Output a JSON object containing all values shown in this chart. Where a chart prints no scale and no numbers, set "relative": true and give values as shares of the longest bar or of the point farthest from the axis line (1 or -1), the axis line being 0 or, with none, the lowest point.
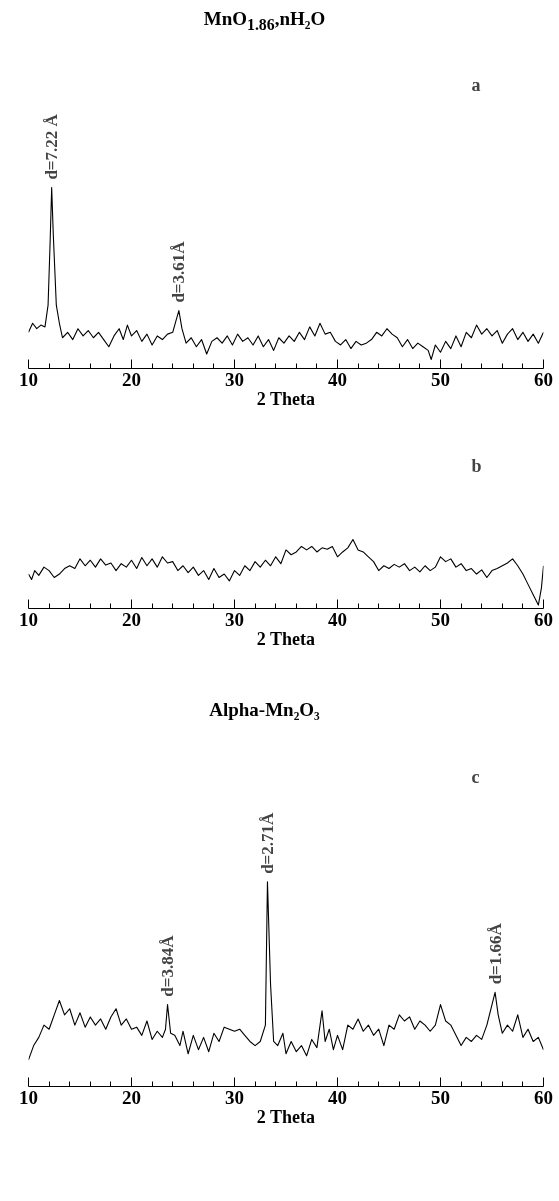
{
  "chart_data": [
    {
      "type": "line",
      "title": "MnO$_{1.86}$,nH₂O",
      "xlabel": "2 Theta",
      "relative": true,
      "color": "#000000",
      "xlim": [
        10,
        60
      ],
      "xticks": [
        10,
        {
          "value": 12,
          "label": null
        },
        {
          "value": 14,
          "label": null
        },
        {
          "value": 16,
          "label": null
        },
        {
          "value": 18,
          "label": null
        },
        20,
        {
          "value": 22,
          "label": null
        },
        {
          "value": 24,
          "label": null
        },
        {
          "value": 26,
          "label": null
        },
        {
          "value": 28,
          "label": null
        },
        30,
        {
          "value": 32,
          "label": null
        },
        {
          "value": 34,
          "label": null
        },
        {
          "value": 36,
          "label": null
        },
        {
          "value": 38,
          "label": null
        },
        40,
        {
          "value": 42,
          "label": null
        },
        {
          "value": 44,
          "label": null
        },
        {
          "value": 46,
          "label": null
        },
        {
          "value": 48,
          "label": null
        },
        50,
        {
          "value": 52,
          "label": null
        },
        {
          "value": 54,
          "label": null
        },
        {
          "value": 56,
          "label": null
        },
        {
          "value": 58,
          "label": null
        },
        60
      ],
      "x": [
        10,
        10.4,
        10.8,
        11.2,
        11.6,
        11.9,
        12.1,
        12.25,
        12.4,
        12.7,
        13,
        13.3,
        13.8,
        14.3,
        14.8,
        15.3,
        15.8,
        16.3,
        16.8,
        17.3,
        17.8,
        18.3,
        18.8,
        19.2,
        19.6,
        20,
        20.5,
        21,
        21.5,
        22,
        22.5,
        23,
        23.5,
        24,
        24.3,
        24.6,
        24.9,
        25.3,
        25.8,
        26.3,
        26.8,
        27.3,
        27.8,
        28.3,
        28.8,
        29.3,
        29.8,
        30.3,
        30.8,
        31.3,
        31.8,
        32.3,
        32.8,
        33.3,
        33.8,
        34.3,
        34.8,
        35.3,
        35.8,
        36.3,
        36.8,
        37.3,
        37.8,
        38.3,
        38.8,
        39.3,
        39.8,
        40.3,
        40.8,
        41.3,
        41.8,
        42.3,
        42.8,
        43.3,
        43.8,
        44.3,
        44.8,
        45.3,
        45.8,
        46.3,
        46.8,
        47.3,
        47.8,
        48.3,
        48.8,
        49.1,
        49.5,
        50,
        50.5,
        51,
        51.5,
        52,
        52.5,
        53,
        53.5,
        54,
        54.5,
        55,
        55.5,
        56,
        56.5,
        57,
        57.5,
        58,
        58.5,
        59,
        59.5,
        60
      ],
      "values": [
        0.2,
        0.25,
        0.22,
        0.24,
        0.23,
        0.35,
        0.7,
        1.0,
        0.75,
        0.35,
        0.25,
        0.17,
        0.2,
        0.16,
        0.22,
        0.18,
        0.21,
        0.17,
        0.2,
        0.16,
        0.12,
        0.18,
        0.22,
        0.16,
        0.24,
        0.18,
        0.21,
        0.15,
        0.19,
        0.13,
        0.18,
        0.16,
        0.19,
        0.2,
        0.26,
        0.32,
        0.22,
        0.14,
        0.17,
        0.12,
        0.16,
        0.08,
        0.15,
        0.17,
        0.14,
        0.18,
        0.13,
        0.19,
        0.15,
        0.17,
        0.13,
        0.18,
        0.12,
        0.16,
        0.1,
        0.17,
        0.14,
        0.18,
        0.15,
        0.2,
        0.16,
        0.23,
        0.18,
        0.25,
        0.19,
        0.2,
        0.15,
        0.13,
        0.16,
        0.11,
        0.15,
        0.13,
        0.14,
        0.16,
        0.2,
        0.18,
        0.22,
        0.19,
        0.17,
        0.12,
        0.16,
        0.11,
        0.14,
        0.12,
        0.1,
        0.05,
        0.13,
        0.09,
        0.15,
        0.11,
        0.18,
        0.12,
        0.2,
        0.17,
        0.24,
        0.19,
        0.22,
        0.18,
        0.21,
        0.14,
        0.19,
        0.22,
        0.16,
        0.2,
        0.15,
        0.19,
        0.14,
        0.2
      ],
      "annotations": [
        {
          "text": "d=7.22 Å",
          "x": 12.25,
          "y": 1.0
        },
        {
          "text": "d=3.61Å",
          "x": 24.6,
          "y": 0.32
        },
        "a"
      ]
    },
    {
      "type": "line",
      "xlabel": "2 Theta",
      "relative": true,
      "color": "#000000",
      "xlim": [
        10,
        60
      ],
      "xticks": [
        10,
        {
          "value": 12,
          "label": null
        },
        {
          "value": 14,
          "label": null
        },
        {
          "value": 16,
          "label": null
        },
        {
          "value": 18,
          "label": null
        },
        20,
        {
          "value": 22,
          "label": null
        },
        {
          "value": 24,
          "label": null
        },
        {
          "value": 26,
          "label": null
        },
        {
          "value": 28,
          "label": null
        },
        30,
        {
          "value": 32,
          "label": null
        },
        {
          "value": 34,
          "label": null
        },
        {
          "value": 36,
          "label": null
        },
        {
          "value": 38,
          "label": null
        },
        40,
        {
          "value": 42,
          "label": null
        },
        {
          "value": 44,
          "label": null
        },
        {
          "value": 46,
          "label": null
        },
        {
          "value": 48,
          "label": null
        },
        50,
        {
          "value": 52,
          "label": null
        },
        {
          "value": 54,
          "label": null
        },
        {
          "value": 56,
          "label": null
        },
        {
          "value": 58,
          "label": null
        },
        60
      ],
      "x": [
        10,
        10.3,
        10.6,
        11,
        11.5,
        12,
        12.5,
        13,
        13.5,
        14,
        14.5,
        15,
        15.5,
        16,
        16.5,
        17,
        17.5,
        18,
        18.5,
        19,
        19.5,
        20,
        20.5,
        21,
        21.5,
        22,
        22.5,
        23,
        23.5,
        24,
        24.5,
        25,
        25.5,
        26,
        26.5,
        27,
        27.5,
        28,
        28.5,
        29,
        29.5,
        30,
        30.5,
        31,
        31.5,
        32,
        32.5,
        33,
        33.5,
        34,
        34.5,
        35,
        35.5,
        36,
        36.5,
        37,
        37.5,
        38,
        38.5,
        39,
        39.5,
        40,
        40.5,
        41,
        41.5,
        42,
        42.5,
        43,
        43.5,
        44,
        44.5,
        45,
        45.5,
        46,
        46.5,
        47,
        47.5,
        48,
        48.5,
        49,
        49.5,
        50,
        50.5,
        51,
        51.5,
        52,
        52.5,
        53,
        53.5,
        54,
        54.5,
        55,
        55.5,
        56,
        56.5,
        57,
        57.5,
        58,
        58.5,
        59,
        59.5,
        59.8,
        60
      ],
      "values": [
        0.5,
        0.42,
        0.55,
        0.48,
        0.6,
        0.55,
        0.45,
        0.5,
        0.58,
        0.62,
        0.58,
        0.72,
        0.62,
        0.7,
        0.6,
        0.72,
        0.63,
        0.66,
        0.55,
        0.65,
        0.6,
        0.7,
        0.58,
        0.74,
        0.62,
        0.72,
        0.6,
        0.75,
        0.66,
        0.68,
        0.55,
        0.62,
        0.52,
        0.6,
        0.48,
        0.55,
        0.42,
        0.58,
        0.45,
        0.5,
        0.4,
        0.55,
        0.48,
        0.62,
        0.55,
        0.68,
        0.6,
        0.7,
        0.62,
        0.75,
        0.65,
        0.85,
        0.78,
        0.82,
        0.9,
        0.85,
        0.9,
        0.82,
        0.88,
        0.86,
        0.9,
        0.75,
        0.82,
        0.88,
        1.0,
        0.85,
        0.82,
        0.75,
        0.68,
        0.55,
        0.62,
        0.58,
        0.64,
        0.6,
        0.65,
        0.55,
        0.6,
        0.53,
        0.62,
        0.55,
        0.6,
        0.75,
        0.68,
        0.72,
        0.6,
        0.65,
        0.55,
        0.58,
        0.5,
        0.56,
        0.45,
        0.55,
        0.58,
        0.62,
        0.66,
        0.72,
        0.62,
        0.5,
        0.35,
        0.2,
        0.05,
        0.3,
        0.62
      ],
      "annotations": [
        "b"
      ]
    },
    {
      "type": "line",
      "title": "Alpha-Mn₂O₃",
      "xlabel": "2 Theta",
      "relative": true,
      "color": "#000000",
      "xlim": [
        10,
        60
      ],
      "xticks": [
        10,
        {
          "value": 12,
          "label": null
        },
        {
          "value": 14,
          "label": null
        },
        {
          "value": 16,
          "label": null
        },
        {
          "value": 18,
          "label": null
        },
        20,
        {
          "value": 22,
          "label": null
        },
        {
          "value": 24,
          "label": null
        },
        {
          "value": 26,
          "label": null
        },
        {
          "value": 28,
          "label": null
        },
        30,
        {
          "value": 32,
          "label": null
        },
        {
          "value": 34,
          "label": null
        },
        {
          "value": 36,
          "label": null
        },
        {
          "value": 38,
          "label": null
        },
        40,
        {
          "value": 42,
          "label": null
        },
        {
          "value": 44,
          "label": null
        },
        {
          "value": 46,
          "label": null
        },
        {
          "value": 48,
          "label": null
        },
        50,
        {
          "value": 52,
          "label": null
        },
        {
          "value": 54,
          "label": null
        },
        {
          "value": 56,
          "label": null
        },
        {
          "value": 58,
          "label": null
        },
        60
      ],
      "x": [
        10,
        10.5,
        11,
        11.5,
        12,
        12.5,
        13,
        13.5,
        14,
        14.5,
        15,
        15.5,
        16,
        16.5,
        17,
        17.5,
        18,
        18.5,
        19,
        19.5,
        20,
        20.5,
        21,
        21.5,
        22,
        22.5,
        23,
        23.3,
        23.5,
        23.8,
        24.2,
        24.7,
        25,
        25.5,
        26,
        26.5,
        27,
        27.5,
        28,
        28.5,
        29,
        29.5,
        30,
        30.5,
        31,
        31.5,
        32,
        32.5,
        33,
        33.2,
        33.5,
        33.8,
        34.2,
        34.7,
        35,
        35.5,
        36,
        36.5,
        37,
        37.5,
        38,
        38.5,
        38.8,
        39.2,
        39.6,
        40,
        40.5,
        41,
        41.5,
        42,
        42.5,
        43,
        43.5,
        44,
        44.5,
        45,
        45.5,
        46,
        46.5,
        47,
        47.5,
        48,
        48.5,
        49,
        49.5,
        50,
        50.5,
        51,
        51.5,
        52,
        52.5,
        53,
        53.5,
        54,
        54.5,
        55,
        55.3,
        55.6,
        56,
        56.5,
        57,
        57.5,
        58,
        58.5,
        59,
        59.5,
        60
      ],
      "values": [
        0.13,
        0.2,
        0.24,
        0.3,
        0.28,
        0.35,
        0.42,
        0.35,
        0.38,
        0.3,
        0.36,
        0.29,
        0.34,
        0.3,
        0.33,
        0.28,
        0.34,
        0.38,
        0.3,
        0.33,
        0.28,
        0.29,
        0.25,
        0.32,
        0.23,
        0.27,
        0.24,
        0.28,
        0.4,
        0.26,
        0.25,
        0.2,
        0.27,
        0.16,
        0.25,
        0.18,
        0.24,
        0.17,
        0.26,
        0.22,
        0.29,
        0.28,
        0.27,
        0.28,
        0.25,
        0.22,
        0.2,
        0.22,
        0.3,
        1.0,
        0.5,
        0.22,
        0.2,
        0.26,
        0.16,
        0.22,
        0.17,
        0.2,
        0.15,
        0.23,
        0.19,
        0.37,
        0.22,
        0.28,
        0.18,
        0.25,
        0.18,
        0.3,
        0.28,
        0.33,
        0.27,
        0.3,
        0.25,
        0.28,
        0.2,
        0.3,
        0.28,
        0.35,
        0.32,
        0.34,
        0.28,
        0.32,
        0.3,
        0.27,
        0.3,
        0.4,
        0.32,
        0.3,
        0.25,
        0.2,
        0.24,
        0.22,
        0.25,
        0.23,
        0.3,
        0.4,
        0.46,
        0.35,
        0.26,
        0.3,
        0.27,
        0.35,
        0.24,
        0.28,
        0.22,
        0.24,
        0.18
      ],
      "annotations": [
        {
          "text": "d=3.84Å",
          "x": 23.5,
          "y": 0.4
        },
        {
          "text": "d=2.71Å",
          "x": 33.2,
          "y": 1.0
        },
        {
          "text": "d=1.66Å",
          "x": 55.3,
          "y": 0.46
        },
        "c"
      ]
    }
  ]
}
